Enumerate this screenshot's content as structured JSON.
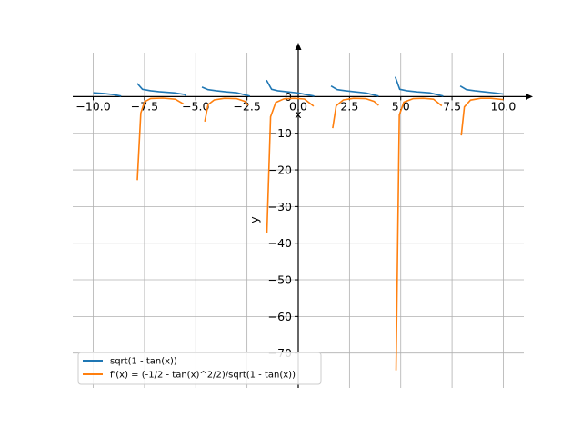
{
  "chart_data": {
    "type": "line",
    "xlabel": "x",
    "ylabel": "y",
    "xlim": [
      -11.0,
      11.0
    ],
    "ylim": [
      -79.5,
      12.0
    ],
    "xticks": [
      -10.0,
      -7.5,
      -5.0,
      -2.5,
      0.0,
      2.5,
      5.0,
      7.5,
      10.0
    ],
    "xtick_labels": [
      "−10.0",
      "−7.5",
      "−5.0",
      "−2.5",
      "0.0",
      "2.5",
      "5.0",
      "7.5",
      "10.0"
    ],
    "yticks": [
      0,
      -10,
      -20,
      -30,
      -40,
      -50,
      -60,
      -70
    ],
    "ytick_labels": [
      "0",
      "−10",
      "−20",
      "−30",
      "−40",
      "−50",
      "−60",
      "−70"
    ],
    "grid": true,
    "legend_position": "lower-left",
    "series": [
      {
        "name": "sqrt(1 - tan(x))",
        "color": "#1f77b4",
        "segments": [
          [
            [
              -10.0,
              1.06
            ],
            [
              -9.5,
              0.85
            ],
            [
              -9.0,
              0.55
            ],
            [
              -8.64,
              0.15
            ]
          ],
          [
            [
              -7.85,
              3.6
            ],
            [
              -7.6,
              2.0
            ],
            [
              -7.2,
              1.6
            ],
            [
              -6.8,
              1.35
            ],
            [
              -6.0,
              1.0
            ],
            [
              -5.5,
              0.55
            ],
            [
              -5.5,
              0.15
            ]
          ],
          [
            [
              -4.7,
              2.6
            ],
            [
              -4.4,
              1.9
            ],
            [
              -4.0,
              1.6
            ],
            [
              -3.5,
              1.3
            ],
            [
              -3.0,
              1.05
            ],
            [
              -2.36,
              0.15
            ]
          ],
          [
            [
              -1.55,
              4.5
            ],
            [
              -1.3,
              2.0
            ],
            [
              -1.0,
              1.6
            ],
            [
              -0.5,
              1.28
            ],
            [
              0.0,
              1.0
            ],
            [
              0.39,
              0.55
            ],
            [
              0.78,
              0.15
            ]
          ],
          [
            [
              1.6,
              2.9
            ],
            [
              1.9,
              1.9
            ],
            [
              2.3,
              1.6
            ],
            [
              2.8,
              1.3
            ],
            [
              3.3,
              1.0
            ],
            [
              3.92,
              0.15
            ]
          ],
          [
            [
              4.73,
              5.4
            ],
            [
              4.95,
              2.0
            ],
            [
              5.3,
              1.6
            ],
            [
              5.8,
              1.3
            ],
            [
              6.4,
              1.05
            ],
            [
              7.07,
              0.15
            ]
          ],
          [
            [
              7.9,
              2.9
            ],
            [
              8.2,
              1.9
            ],
            [
              8.6,
              1.6
            ],
            [
              9.1,
              1.3
            ],
            [
              9.6,
              1.0
            ],
            [
              10.0,
              0.7
            ]
          ]
        ]
      },
      {
        "name": "f'(x) = (-1/2 - tan(x)^2/2)/sqrt(1 - tan(x))",
        "color": "#ff7f0e",
        "segments": [
          [
            [
              -7.85,
              -22.8
            ],
            [
              -7.68,
              -4.5
            ],
            [
              -7.5,
              -1.4
            ],
            [
              -7.2,
              -0.5
            ],
            [
              -6.6,
              -0.4
            ],
            [
              -6.0,
              -0.7
            ],
            [
              -5.6,
              -2.0
            ]
          ],
          [
            [
              -4.56,
              -6.8
            ],
            [
              -4.4,
              -2.2
            ],
            [
              -4.1,
              -0.9
            ],
            [
              -3.6,
              -0.45
            ],
            [
              -3.0,
              -0.55
            ],
            [
              -2.6,
              -1.3
            ],
            [
              -2.45,
              -2.4
            ]
          ],
          [
            [
              -1.53,
              -37.2
            ],
            [
              -1.35,
              -5.5
            ],
            [
              -1.1,
              -1.6
            ],
            [
              -0.7,
              -0.6
            ],
            [
              -0.2,
              -0.45
            ],
            [
              0.3,
              -0.65
            ],
            [
              0.75,
              -2.6
            ]
          ],
          [
            [
              1.68,
              -8.6
            ],
            [
              1.85,
              -2.5
            ],
            [
              2.2,
              -0.9
            ],
            [
              2.7,
              -0.45
            ],
            [
              3.3,
              -0.55
            ],
            [
              3.7,
              -1.3
            ],
            [
              3.92,
              -2.4
            ]
          ],
          [
            [
              4.77,
              -74.7
            ],
            [
              4.93,
              -5.0
            ],
            [
              5.15,
              -1.5
            ],
            [
              5.6,
              -0.55
            ],
            [
              6.1,
              -0.45
            ],
            [
              6.6,
              -0.7
            ],
            [
              7.0,
              -2.5
            ]
          ],
          [
            [
              7.95,
              -10.6
            ],
            [
              8.1,
              -2.8
            ],
            [
              8.4,
              -0.95
            ],
            [
              8.9,
              -0.45
            ],
            [
              9.4,
              -0.45
            ],
            [
              10.0,
              -0.8
            ]
          ]
        ]
      }
    ]
  }
}
